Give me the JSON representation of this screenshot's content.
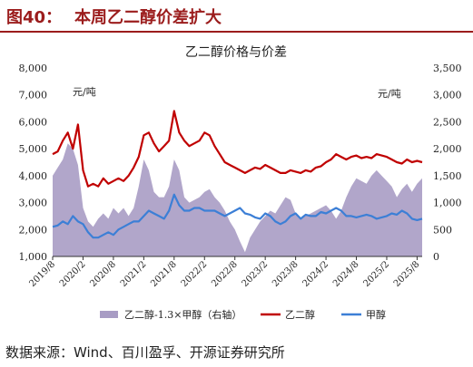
{
  "header": {
    "label": "图40：",
    "title": "本周乙二醇价差扩大"
  },
  "source_note": "数据来源：Wind、百川盈孚、开源证券研究所",
  "chart_data": {
    "type": "line",
    "title": "乙二醇价格与价差",
    "left_unit": "元/吨",
    "right_unit": "元/吨",
    "y_left": {
      "min": 1000,
      "max": 8000,
      "ticks": [
        "1,000",
        "2,000",
        "3,000",
        "4,000",
        "5,000",
        "6,000",
        "7,000",
        "8,000"
      ]
    },
    "y_right": {
      "min": 0,
      "max": 3500,
      "ticks": [
        "0",
        "500",
        "1,000",
        "1,500",
        "2,000",
        "2,500",
        "3,000",
        "3,500"
      ]
    },
    "x_range": [
      0,
      73
    ],
    "x_ticks": [
      {
        "pos": 0,
        "label": "2019/8"
      },
      {
        "pos": 6,
        "label": "2020/2"
      },
      {
        "pos": 12,
        "label": "2020/8"
      },
      {
        "pos": 18,
        "label": "2021/2"
      },
      {
        "pos": 24,
        "label": "2021/8"
      },
      {
        "pos": 30,
        "label": "2022/2"
      },
      {
        "pos": 36,
        "label": "2022/8"
      },
      {
        "pos": 42,
        "label": "2023/2"
      },
      {
        "pos": 48,
        "label": "2023/8"
      },
      {
        "pos": 54,
        "label": "2024/2"
      },
      {
        "pos": 60,
        "label": "2024/8"
      },
      {
        "pos": 66,
        "label": "2025/2"
      },
      {
        "pos": 72,
        "label": "2025/8"
      }
    ],
    "series": [
      {
        "name": "乙二醇-1.3×甲醇（右轴）",
        "axis": "right",
        "kind": "area",
        "color": "#a89cc4",
        "points": [
          [
            0,
            1500
          ],
          [
            1,
            1650
          ],
          [
            2,
            1800
          ],
          [
            3,
            2100
          ],
          [
            4,
            2000
          ],
          [
            5,
            1700
          ],
          [
            6,
            900
          ],
          [
            7,
            650
          ],
          [
            8,
            550
          ],
          [
            9,
            700
          ],
          [
            10,
            800
          ],
          [
            11,
            700
          ],
          [
            12,
            900
          ],
          [
            13,
            800
          ],
          [
            14,
            900
          ],
          [
            15,
            750
          ],
          [
            16,
            900
          ],
          [
            17,
            1300
          ],
          [
            18,
            1800
          ],
          [
            19,
            1600
          ],
          [
            20,
            1200
          ],
          [
            21,
            1100
          ],
          [
            22,
            1100
          ],
          [
            23,
            1300
          ],
          [
            24,
            1800
          ],
          [
            25,
            1600
          ],
          [
            26,
            1100
          ],
          [
            27,
            1000
          ],
          [
            28,
            1050
          ],
          [
            29,
            1100
          ],
          [
            30,
            1200
          ],
          [
            31,
            1250
          ],
          [
            32,
            1100
          ],
          [
            33,
            1000
          ],
          [
            34,
            850
          ],
          [
            35,
            650
          ],
          [
            36,
            500
          ],
          [
            37,
            280
          ],
          [
            38,
            80
          ],
          [
            39,
            350
          ],
          [
            40,
            500
          ],
          [
            41,
            650
          ],
          [
            42,
            750
          ],
          [
            43,
            850
          ],
          [
            44,
            800
          ],
          [
            45,
            950
          ],
          [
            46,
            1100
          ],
          [
            47,
            1050
          ],
          [
            48,
            800
          ],
          [
            49,
            700
          ],
          [
            50,
            750
          ],
          [
            51,
            800
          ],
          [
            52,
            850
          ],
          [
            53,
            900
          ],
          [
            54,
            950
          ],
          [
            55,
            850
          ],
          [
            56,
            700
          ],
          [
            57,
            850
          ],
          [
            58,
            1100
          ],
          [
            59,
            1300
          ],
          [
            60,
            1450
          ],
          [
            61,
            1400
          ],
          [
            62,
            1350
          ],
          [
            63,
            1500
          ],
          [
            64,
            1600
          ],
          [
            65,
            1500
          ],
          [
            66,
            1400
          ],
          [
            67,
            1300
          ],
          [
            68,
            1100
          ],
          [
            69,
            1250
          ],
          [
            70,
            1350
          ],
          [
            71,
            1200
          ],
          [
            72,
            1350
          ],
          [
            73,
            1450
          ]
        ]
      },
      {
        "name": "乙二醇",
        "axis": "left",
        "kind": "line",
        "color": "#c00000",
        "points": [
          [
            0,
            4800
          ],
          [
            1,
            4900
          ],
          [
            2,
            5300
          ],
          [
            3,
            5600
          ],
          [
            4,
            5000
          ],
          [
            5,
            5900
          ],
          [
            6,
            4200
          ],
          [
            7,
            3600
          ],
          [
            8,
            3700
          ],
          [
            9,
            3600
          ],
          [
            10,
            3900
          ],
          [
            11,
            3700
          ],
          [
            12,
            3800
          ],
          [
            13,
            3900
          ],
          [
            14,
            3800
          ],
          [
            15,
            4000
          ],
          [
            16,
            4300
          ],
          [
            17,
            4700
          ],
          [
            18,
            5500
          ],
          [
            19,
            5600
          ],
          [
            20,
            5200
          ],
          [
            21,
            4900
          ],
          [
            22,
            5100
          ],
          [
            23,
            5300
          ],
          [
            24,
            6400
          ],
          [
            25,
            5600
          ],
          [
            26,
            5300
          ],
          [
            27,
            5100
          ],
          [
            28,
            5200
          ],
          [
            29,
            5300
          ],
          [
            30,
            5600
          ],
          [
            31,
            5500
          ],
          [
            32,
            5100
          ],
          [
            33,
            4800
          ],
          [
            34,
            4500
          ],
          [
            35,
            4400
          ],
          [
            36,
            4300
          ],
          [
            37,
            4200
          ],
          [
            38,
            4100
          ],
          [
            39,
            4200
          ],
          [
            40,
            4300
          ],
          [
            41,
            4250
          ],
          [
            42,
            4400
          ],
          [
            43,
            4300
          ],
          [
            44,
            4200
          ],
          [
            45,
            4100
          ],
          [
            46,
            4100
          ],
          [
            47,
            4200
          ],
          [
            48,
            4150
          ],
          [
            49,
            4100
          ],
          [
            50,
            4200
          ],
          [
            51,
            4150
          ],
          [
            52,
            4300
          ],
          [
            53,
            4350
          ],
          [
            54,
            4500
          ],
          [
            55,
            4600
          ],
          [
            56,
            4800
          ],
          [
            57,
            4700
          ],
          [
            58,
            4600
          ],
          [
            59,
            4700
          ],
          [
            60,
            4750
          ],
          [
            61,
            4650
          ],
          [
            62,
            4700
          ],
          [
            63,
            4650
          ],
          [
            64,
            4800
          ],
          [
            65,
            4750
          ],
          [
            66,
            4700
          ],
          [
            67,
            4600
          ],
          [
            68,
            4500
          ],
          [
            69,
            4450
          ],
          [
            70,
            4600
          ],
          [
            71,
            4500
          ],
          [
            72,
            4550
          ],
          [
            73,
            4500
          ]
        ]
      },
      {
        "name": "甲醇",
        "axis": "left",
        "kind": "line",
        "color": "#3c7fd6",
        "points": [
          [
            0,
            2100
          ],
          [
            1,
            2150
          ],
          [
            2,
            2300
          ],
          [
            3,
            2200
          ],
          [
            4,
            2500
          ],
          [
            5,
            2300
          ],
          [
            6,
            2200
          ],
          [
            7,
            1900
          ],
          [
            8,
            1700
          ],
          [
            9,
            1700
          ],
          [
            10,
            1800
          ],
          [
            11,
            1900
          ],
          [
            12,
            1800
          ],
          [
            13,
            2000
          ],
          [
            14,
            2100
          ],
          [
            15,
            2200
          ],
          [
            16,
            2300
          ],
          [
            17,
            2300
          ],
          [
            18,
            2500
          ],
          [
            19,
            2700
          ],
          [
            20,
            2600
          ],
          [
            21,
            2500
          ],
          [
            22,
            2400
          ],
          [
            23,
            2700
          ],
          [
            24,
            3300
          ],
          [
            25,
            2900
          ],
          [
            26,
            2700
          ],
          [
            27,
            2700
          ],
          [
            28,
            2800
          ],
          [
            29,
            2800
          ],
          [
            30,
            2700
          ],
          [
            31,
            2700
          ],
          [
            32,
            2700
          ],
          [
            33,
            2600
          ],
          [
            34,
            2500
          ],
          [
            35,
            2600
          ],
          [
            36,
            2700
          ],
          [
            37,
            2800
          ],
          [
            38,
            2600
          ],
          [
            39,
            2550
          ],
          [
            40,
            2450
          ],
          [
            41,
            2400
          ],
          [
            42,
            2600
          ],
          [
            43,
            2500
          ],
          [
            44,
            2300
          ],
          [
            45,
            2200
          ],
          [
            46,
            2300
          ],
          [
            47,
            2500
          ],
          [
            48,
            2600
          ],
          [
            49,
            2400
          ],
          [
            50,
            2550
          ],
          [
            51,
            2500
          ],
          [
            52,
            2500
          ],
          [
            53,
            2650
          ],
          [
            54,
            2600
          ],
          [
            55,
            2700
          ],
          [
            56,
            2800
          ],
          [
            57,
            2700
          ],
          [
            58,
            2500
          ],
          [
            59,
            2500
          ],
          [
            60,
            2450
          ],
          [
            61,
            2500
          ],
          [
            62,
            2550
          ],
          [
            63,
            2500
          ],
          [
            64,
            2400
          ],
          [
            65,
            2450
          ],
          [
            66,
            2500
          ],
          [
            67,
            2600
          ],
          [
            68,
            2550
          ],
          [
            69,
            2700
          ],
          [
            70,
            2600
          ],
          [
            71,
            2400
          ],
          [
            72,
            2350
          ],
          [
            73,
            2400
          ]
        ]
      }
    ]
  }
}
